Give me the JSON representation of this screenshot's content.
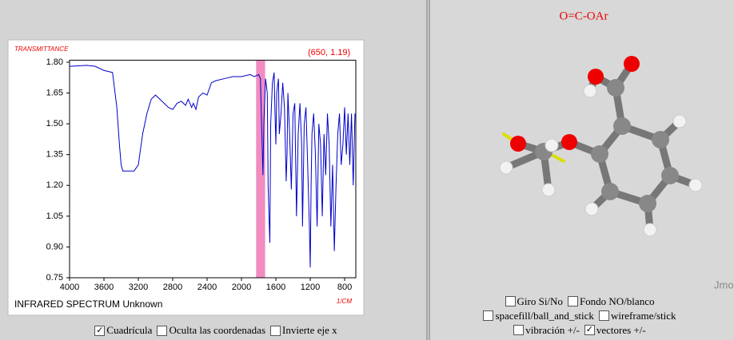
{
  "chart_data": {
    "type": "line",
    "y_label": "TRANSMITTANCE",
    "x_label": "1/CM",
    "footer": "INFRARED SPECTRUM Unknown",
    "coordinates_label": "(650, 1.19)",
    "color": "#0000cc",
    "highlight": [
      1830,
      1725
    ],
    "highlight_color": "#f08cc0",
    "grid": false,
    "xlim": [
      4000,
      670
    ],
    "ylim": [
      0.75,
      1.81
    ],
    "xticks": [
      4000,
      3600,
      3200,
      2800,
      2400,
      2000,
      1600,
      1200,
      800
    ],
    "yticks": [
      {
        "value": 1.8,
        "label": "1.80"
      },
      1.65,
      {
        "value": 1.5,
        "label": "1.50"
      },
      1.35,
      {
        "value": 1.2,
        "label": "1.20"
      },
      1.05,
      {
        "value": 0.9,
        "label": "0.90"
      },
      0.75
    ],
    "x": [
      4000,
      3800,
      3700,
      3600,
      3550,
      3500,
      3450,
      3420,
      3400,
      3380,
      3300,
      3250,
      3200,
      3150,
      3100,
      3050,
      3000,
      2950,
      2900,
      2850,
      2800,
      2750,
      2700,
      2650,
      2620,
      2580,
      2560,
      2530,
      2500,
      2450,
      2400,
      2350,
      2300,
      2200,
      2100,
      2000,
      1900,
      1850,
      1800,
      1780,
      1760,
      1750,
      1740,
      1720,
      1700,
      1690,
      1680,
      1670,
      1660,
      1640,
      1620,
      1610,
      1600,
      1590,
      1570,
      1560,
      1540,
      1520,
      1500,
      1480,
      1470,
      1460,
      1440,
      1420,
      1400,
      1380,
      1360,
      1340,
      1320,
      1300,
      1290,
      1270,
      1250,
      1230,
      1210,
      1200,
      1190,
      1180,
      1160,
      1140,
      1120,
      1100,
      1080,
      1060,
      1040,
      1020,
      1000,
      980,
      960,
      940,
      920,
      900,
      880,
      860,
      840,
      820,
      800,
      780,
      760,
      740,
      720,
      700,
      680
    ],
    "values": [
      1.78,
      1.785,
      1.78,
      1.76,
      1.755,
      1.75,
      1.58,
      1.4,
      1.3,
      1.27,
      1.27,
      1.27,
      1.3,
      1.45,
      1.55,
      1.62,
      1.64,
      1.62,
      1.6,
      1.58,
      1.57,
      1.6,
      1.61,
      1.59,
      1.62,
      1.58,
      1.6,
      1.57,
      1.63,
      1.65,
      1.64,
      1.7,
      1.71,
      1.72,
      1.73,
      1.73,
      1.74,
      1.73,
      1.74,
      1.72,
      1.4,
      1.25,
      1.5,
      1.72,
      1.65,
      1.2,
      1.05,
      0.92,
      1.5,
      1.7,
      1.75,
      1.55,
      1.4,
      1.65,
      1.72,
      1.45,
      1.55,
      1.7,
      1.58,
      1.22,
      1.35,
      1.65,
      1.45,
      1.18,
      1.55,
      1.6,
      1.05,
      1.45,
      1.6,
      1.4,
      1.0,
      1.5,
      1.58,
      1.3,
      1.0,
      0.8,
      1.2,
      1.45,
      1.55,
      1.35,
      1.0,
      1.5,
      1.4,
      1.05,
      1.45,
      1.25,
      1.55,
      1.4,
      1.0,
      1.3,
      0.88,
      1.2,
      1.45,
      1.55,
      1.3,
      1.4,
      1.58,
      1.35,
      1.55,
      1.3,
      1.55,
      1.2,
      1.55
    ]
  },
  "controls": [
    {
      "label": "Cuadrícula",
      "checked": true
    },
    {
      "label": "Oculta las coordenadas",
      "checked": false
    },
    {
      "label": "Invierte eje x",
      "checked": false
    }
  ],
  "viewer": {
    "title": "O=C-OAr",
    "watermark": "Jmo",
    "options": [
      [
        {
          "label": "Giro Si/No",
          "checked": false
        },
        {
          "label": "Fondo NO/blanco",
          "checked": false
        }
      ],
      [
        {
          "label": "spacefill/ball_and_stick",
          "checked": false
        },
        {
          "label": "wireframe/stick",
          "checked": false
        }
      ],
      [
        {
          "label": "vibración +/-",
          "checked": false
        },
        {
          "label": "vectores +/-",
          "checked": true
        }
      ]
    ]
  }
}
